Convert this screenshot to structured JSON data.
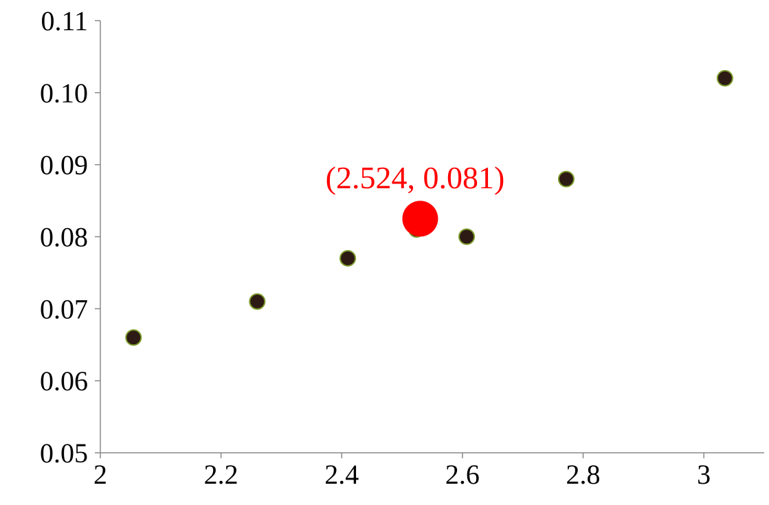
{
  "chart_data": {
    "type": "scatter",
    "title": "",
    "xlabel": "",
    "ylabel": "",
    "xlim": [
      2,
      3.1
    ],
    "ylim": [
      0.05,
      0.11
    ],
    "x_ticks": [
      2,
      2.2,
      2.4,
      2.6,
      2.8,
      3
    ],
    "x_tick_labels": [
      "2",
      "2.2",
      "2.4",
      "2.6",
      "2.8",
      "3"
    ],
    "y_ticks": [
      0.05,
      0.06,
      0.07,
      0.08,
      0.09,
      0.1,
      0.11
    ],
    "y_tick_labels": [
      "0.05",
      "0.06",
      "0.07",
      "0.08",
      "0.09",
      "0.10",
      "0.11"
    ],
    "grid": false,
    "series": [
      {
        "color": "#2e1a14",
        "edge_color": "#7a9a2a",
        "points": [
          {
            "x": 2.055,
            "y": 0.066
          },
          {
            "x": 2.26,
            "y": 0.071
          },
          {
            "x": 2.41,
            "y": 0.077
          },
          {
            "x": 2.524,
            "y": 0.081
          },
          {
            "x": 2.607,
            "y": 0.08
          },
          {
            "x": 2.772,
            "y": 0.088
          },
          {
            "x": 3.035,
            "y": 0.102
          }
        ]
      }
    ],
    "highlight": {
      "x": 2.53,
      "y": 0.0825,
      "color": "#ff0000",
      "label": "(2.524, 0.081)"
    }
  }
}
